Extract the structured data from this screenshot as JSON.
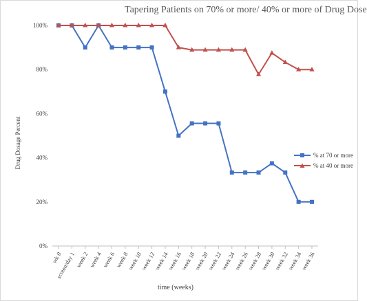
{
  "chart_data": {
    "type": "line",
    "title": "Tapering Patients on 70% or more/ 40% or more of Drug Dose",
    "xlabel": "time (weeks)",
    "ylabel": "Drug Dosage Percent",
    "ylim": [
      0,
      100
    ],
    "y_ticks": [
      "0%",
      "20%",
      "40%",
      "60%",
      "80%",
      "100%"
    ],
    "grid": false,
    "legend_position": "right",
    "categories": [
      "wk 0",
      "screen/day 1",
      "week 2",
      "week 4",
      "week 6",
      "week 8",
      "week 10",
      "week 12",
      "week 14",
      "week 16",
      "week 18",
      "week 20",
      "week 22",
      "week 24",
      "week 26",
      "week 28",
      "week 30",
      "week 32",
      "week 34",
      "week 36"
    ],
    "series": [
      {
        "name": "% at 70 or more",
        "color": "#4472C4",
        "marker": "square",
        "values": [
          100,
          100,
          90,
          100,
          90,
          90,
          90,
          90,
          70,
          50,
          55.6,
          55.6,
          55.6,
          33.3,
          33.3,
          33.3,
          37.5,
          33.3,
          20,
          20
        ]
      },
      {
        "name": "% at 40 or more",
        "color": "#C0504D",
        "marker": "triangle",
        "values": [
          100,
          100,
          100,
          100,
          100,
          100,
          100,
          100,
          100,
          90,
          88.9,
          88.9,
          88.9,
          88.9,
          88.9,
          77.8,
          87.5,
          83.3,
          80,
          80
        ]
      }
    ]
  }
}
